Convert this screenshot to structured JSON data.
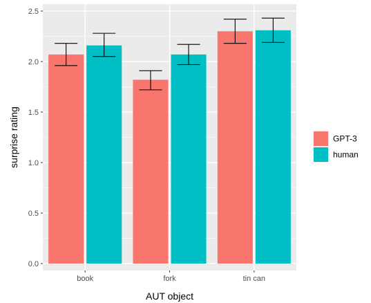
{
  "chart_data": {
    "type": "bar",
    "categories": [
      "book",
      "fork",
      "tin can"
    ],
    "series": [
      {
        "name": "GPT-3",
        "color": "#F8766D",
        "values": [
          2.07,
          1.82,
          2.3
        ],
        "err_low": [
          1.96,
          1.72,
          2.18
        ],
        "err_high": [
          2.18,
          1.91,
          2.42
        ]
      },
      {
        "name": "human",
        "color": "#00BFC4",
        "values": [
          2.16,
          2.07,
          2.31
        ],
        "err_low": [
          2.05,
          1.97,
          2.19
        ],
        "err_high": [
          2.28,
          2.17,
          2.43
        ]
      }
    ],
    "xlabel": "AUT object",
    "ylabel": "surprise rating",
    "ylim": [
      0,
      2.5
    ],
    "yticks": [
      0,
      0.5,
      1.0,
      1.5,
      2.0,
      2.5
    ],
    "ytick_labels": [
      "0.0",
      "0.5",
      "1.0",
      "1.5",
      "2.0",
      "2.5"
    ],
    "grid": true,
    "panel_background": "#EBEBEB",
    "legend": {
      "placement": "right"
    }
  }
}
